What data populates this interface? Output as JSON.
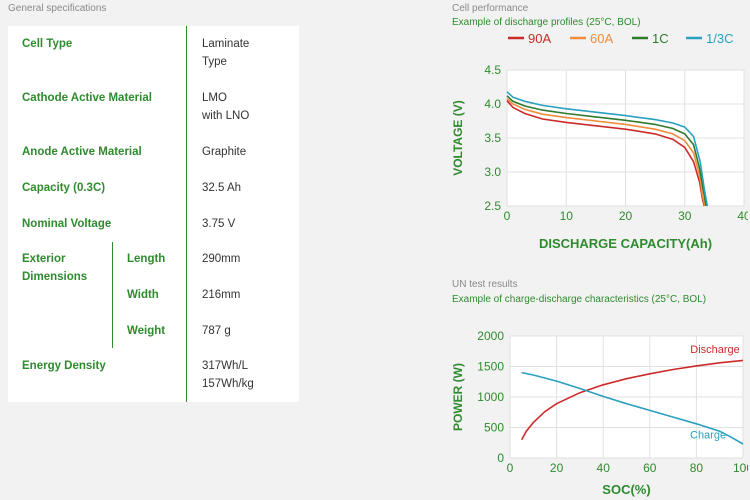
{
  "general": {
    "title": "General specifications",
    "rows": {
      "cell_type": {
        "label": "Cell Type",
        "value": "Laminate\nType"
      },
      "cathode": {
        "label": "Cathode Active Material",
        "value": "LMO\nwith LNO"
      },
      "anode": {
        "label": "Anode Active Material",
        "value": "Graphite"
      },
      "capacity": {
        "label": "Capacity (0.3C)",
        "value": "32.5 Ah"
      },
      "voltage": {
        "label": "Nominal Voltage",
        "value": "3.75 V"
      },
      "exterior": {
        "label": "Exterior\nDimensions",
        "length": {
          "label": "Length",
          "value": "290mm"
        },
        "width": {
          "label": "Width",
          "value": "216mm"
        },
        "weight": {
          "label": "Weight",
          "value": "787 g"
        }
      },
      "energy": {
        "label": "Energy Density",
        "value": "317Wh/L\n157Wh/kg"
      }
    }
  },
  "cell_performance": {
    "title": "Cell performance",
    "subtitle": "Example of discharge profiles (25°C, BOL)"
  },
  "un_test": {
    "title": "UN test results",
    "subtitle": "Example of charge-discharge characteristics (25°C, BOL)"
  },
  "colors": {
    "green": "#2e8b2e",
    "red": "#cc2a2a",
    "orange": "#f08c3c",
    "dark_green": "#2f7a2f",
    "teal": "#2aa0c0"
  },
  "chart_data": [
    {
      "type": "line",
      "xlabel": "DISCHARGE CAPACITY(Ah)",
      "ylabel": "VOLTAGE (V)",
      "xlim": [
        0,
        40
      ],
      "ylim": [
        2.5,
        4.5
      ],
      "xticks": [
        "0",
        "10",
        "20",
        "30",
        "40"
      ],
      "yticks": [
        "2.5",
        "3.0",
        "3.5",
        "4.0",
        "4.5"
      ],
      "legend_position": "top",
      "series": [
        {
          "name": "90A",
          "color": "#cc2a2a",
          "x": [
            0,
            1,
            3,
            6,
            10,
            15,
            20,
            25,
            28,
            30,
            31.5,
            32.5,
            33,
            33.3
          ],
          "y": [
            4.05,
            3.95,
            3.86,
            3.78,
            3.73,
            3.68,
            3.63,
            3.56,
            3.48,
            3.36,
            3.15,
            2.85,
            2.6,
            2.5
          ]
        },
        {
          "name": "60A",
          "color": "#f08c3c",
          "x": [
            0,
            1,
            3,
            6,
            10,
            15,
            20,
            25,
            28,
            30,
            31.5,
            32.5,
            33,
            33.4
          ],
          "y": [
            4.08,
            4.0,
            3.92,
            3.85,
            3.8,
            3.75,
            3.7,
            3.63,
            3.56,
            3.46,
            3.28,
            2.95,
            2.65,
            2.5
          ]
        },
        {
          "name": "1C",
          "color": "#2f7a2f",
          "x": [
            0,
            1,
            3,
            6,
            10,
            15,
            20,
            25,
            28,
            30,
            31.5,
            32.5,
            33.2,
            33.6
          ],
          "y": [
            4.12,
            4.04,
            3.97,
            3.91,
            3.86,
            3.81,
            3.76,
            3.7,
            3.64,
            3.56,
            3.4,
            3.05,
            2.7,
            2.5
          ]
        },
        {
          "name": "1/3C",
          "color": "#2aa0c0",
          "x": [
            0,
            1,
            3,
            6,
            10,
            15,
            20,
            25,
            28,
            30,
            31.5,
            32.6,
            33.3,
            33.8
          ],
          "y": [
            4.18,
            4.1,
            4.04,
            3.98,
            3.93,
            3.88,
            3.83,
            3.77,
            3.72,
            3.66,
            3.52,
            3.15,
            2.75,
            2.5
          ]
        }
      ]
    },
    {
      "type": "line",
      "xlabel": "SOC(%)",
      "ylabel": "POWER (W)",
      "xlim": [
        0,
        100
      ],
      "ylim": [
        0,
        2000
      ],
      "xticks": [
        "0",
        "20",
        "40",
        "60",
        "80",
        "100"
      ],
      "yticks": [
        "0",
        "500",
        "1000",
        "1500",
        "2000"
      ],
      "series": [
        {
          "name": "Discharge",
          "color": "#cc2a2a",
          "x": [
            5,
            7,
            10,
            15,
            20,
            30,
            40,
            50,
            60,
            70,
            80,
            90,
            100
          ],
          "y": [
            300,
            440,
            580,
            760,
            890,
            1070,
            1200,
            1300,
            1380,
            1450,
            1510,
            1560,
            1600
          ]
        },
        {
          "name": "Charge",
          "color": "#2aa0c0",
          "x": [
            5,
            10,
            20,
            30,
            40,
            50,
            60,
            70,
            80,
            90,
            95,
            100
          ],
          "y": [
            1400,
            1360,
            1260,
            1140,
            1010,
            890,
            780,
            670,
            560,
            440,
            340,
            230
          ]
        }
      ]
    }
  ]
}
